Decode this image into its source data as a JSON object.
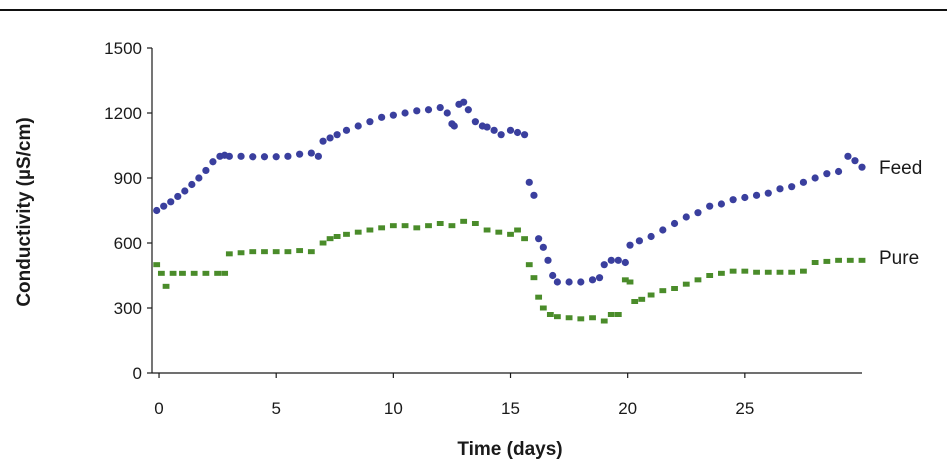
{
  "chart_data": {
    "type": "scatter",
    "title": "",
    "xlabel": "Time (days)",
    "ylabel": "Conductivity (µS/cm)",
    "xlim": [
      -0.3,
      30
    ],
    "ylim": [
      0,
      1500
    ],
    "x_ticks": [
      "0",
      "5",
      "10",
      "15",
      "20",
      "25"
    ],
    "y_ticks": [
      "0",
      "300",
      "600",
      "900",
      "1200",
      "1500"
    ],
    "grid": false,
    "legend": "inline labels at right end of series",
    "series": [
      {
        "name": "Feed",
        "color": "#3a3f9e",
        "marker": "circle",
        "x": [
          -0.1,
          0.2,
          0.5,
          0.8,
          1.1,
          1.4,
          1.7,
          2.0,
          2.3,
          2.6,
          2.8,
          3.0,
          3.5,
          4.0,
          4.5,
          5.0,
          5.5,
          6.0,
          6.5,
          6.8,
          7.0,
          7.3,
          7.6,
          8.0,
          8.5,
          9.0,
          9.5,
          10.0,
          10.5,
          11.0,
          11.5,
          12.0,
          12.3,
          12.5,
          12.6,
          12.8,
          13.0,
          13.2,
          13.5,
          13.8,
          14.0,
          14.3,
          14.6,
          15.0,
          15.3,
          15.6,
          15.8,
          16.0,
          16.2,
          16.4,
          16.6,
          16.8,
          17.0,
          17.5,
          18.0,
          18.5,
          18.8,
          19.0,
          19.3,
          19.6,
          19.9,
          20.1,
          20.5,
          21.0,
          21.5,
          22.0,
          22.5,
          23.0,
          23.5,
          24.0,
          24.5,
          25.0,
          25.5,
          26.0,
          26.5,
          27.0,
          27.5,
          28.0,
          28.5,
          29.0,
          29.4,
          29.7,
          30.0
        ],
        "y": [
          750,
          770,
          790,
          815,
          840,
          870,
          900,
          935,
          975,
          1000,
          1005,
          1000,
          1000,
          998,
          998,
          998,
          1000,
          1010,
          1015,
          1000,
          1070,
          1085,
          1100,
          1120,
          1140,
          1160,
          1180,
          1190,
          1200,
          1210,
          1215,
          1225,
          1200,
          1150,
          1140,
          1240,
          1250,
          1215,
          1160,
          1140,
          1135,
          1120,
          1100,
          1120,
          1110,
          1100,
          880,
          820,
          620,
          580,
          520,
          450,
          420,
          420,
          420,
          430,
          440,
          500,
          520,
          520,
          510,
          590,
          610,
          630,
          660,
          690,
          720,
          740,
          770,
          780,
          800,
          810,
          820,
          830,
          850,
          860,
          880,
          900,
          920,
          930,
          1000,
          980,
          950
        ]
      },
      {
        "name": "Pure",
        "color": "#4a8c2a",
        "marker": "square",
        "x": [
          -0.1,
          0.1,
          0.3,
          0.6,
          1.0,
          1.5,
          2.0,
          2.5,
          2.8,
          3.0,
          3.5,
          4.0,
          4.5,
          5.0,
          5.5,
          6.0,
          6.5,
          7.0,
          7.3,
          7.6,
          8.0,
          8.5,
          9.0,
          9.5,
          10.0,
          10.5,
          11.0,
          11.5,
          12.0,
          12.5,
          13.0,
          13.5,
          14.0,
          14.5,
          15.0,
          15.3,
          15.6,
          15.8,
          16.0,
          16.2,
          16.4,
          16.7,
          17.0,
          17.5,
          18.0,
          18.5,
          19.0,
          19.3,
          19.6,
          19.9,
          20.1,
          20.3,
          20.6,
          21.0,
          21.5,
          22.0,
          22.5,
          23.0,
          23.5,
          24.0,
          24.5,
          25.0,
          25.5,
          26.0,
          26.5,
          27.0,
          27.5,
          28.0,
          28.5,
          29.0,
          29.5,
          30.0
        ],
        "y": [
          500,
          460,
          400,
          460,
          460,
          460,
          460,
          460,
          460,
          550,
          555,
          560,
          560,
          560,
          560,
          565,
          560,
          600,
          620,
          630,
          640,
          650,
          660,
          670,
          680,
          680,
          670,
          680,
          690,
          680,
          700,
          690,
          660,
          650,
          640,
          660,
          620,
          500,
          440,
          350,
          300,
          270,
          260,
          255,
          250,
          255,
          240,
          270,
          270,
          430,
          420,
          330,
          340,
          360,
          380,
          390,
          410,
          430,
          450,
          460,
          470,
          470,
          465,
          465,
          465,
          465,
          470,
          510,
          515,
          520,
          520,
          520
        ]
      }
    ]
  }
}
